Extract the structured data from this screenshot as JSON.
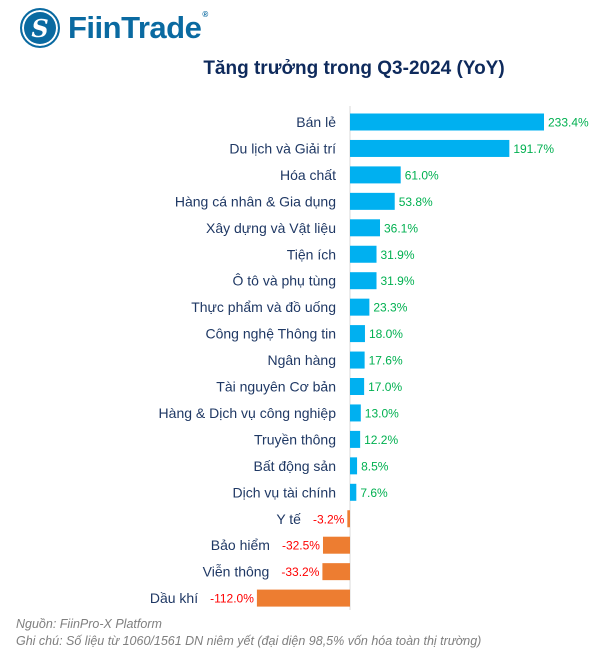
{
  "brand": {
    "name": "FiinTrade",
    "registered": "®"
  },
  "chart_data": {
    "type": "bar",
    "orientation": "horizontal",
    "title": "Tăng trưởng trong Q3-2024 (YoY)",
    "categories": [
      "Bán lẻ",
      "Du lịch và Giải trí",
      "Hóa chất",
      "Hàng cá nhân & Gia dụng",
      "Xây dựng và Vật liệu",
      "Tiện ích",
      "Ô tô và phụ tùng",
      "Thực phẩm và đồ uống",
      "Công nghệ Thông tin",
      "Ngân hàng",
      "Tài nguyên Cơ bản",
      "Hàng & Dịch vụ công nghiệp",
      "Truyền thông",
      "Bất động sản",
      "Dịch vụ tài chính",
      "Y tế",
      "Bảo hiểm",
      "Viễn thông",
      "Dầu khí"
    ],
    "values": [
      233.4,
      191.7,
      61.0,
      53.8,
      36.1,
      31.9,
      31.9,
      23.3,
      18.0,
      17.6,
      17.0,
      13.0,
      12.2,
      8.5,
      7.6,
      -3.2,
      -32.5,
      -33.2,
      -112.0
    ],
    "labels": [
      "233.4%",
      "191.7%",
      "61.0%",
      "53.8%",
      "36.1%",
      "31.9%",
      "31.9%",
      "23.3%",
      "18.0%",
      "17.6%",
      "17.0%",
      "13.0%",
      "12.2%",
      "8.5%",
      "7.6%",
      "-3.2%",
      "-32.5%",
      "-33.2%",
      "-112.0%"
    ],
    "unit": "%",
    "colors": {
      "positive_bar": "#00B0F0",
      "negative_bar": "#ED7D31",
      "positive_label": "#00B050",
      "negative_label": "#FF0000",
      "category_label": "#1F3864"
    },
    "grid": false
  },
  "notes": {
    "source": "Nguồn: FiinPro-X Platform",
    "remark": "Ghi chú: Số liệu từ 1060/1561 DN niêm yết (đại diện 98,5% vốn hóa toàn thị trường)"
  }
}
